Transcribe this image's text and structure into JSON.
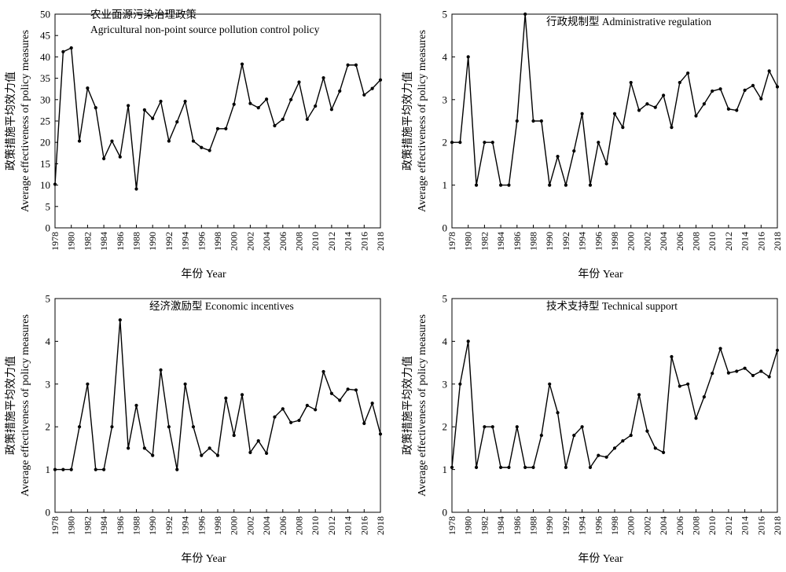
{
  "chart_data": [
    {
      "type": "line",
      "title": "农业面源污染治理政策",
      "subtitle": "Agricultural non-point source pollution control policy",
      "xlabel": "年份 Year",
      "ylabel": "政策措施平均效力值",
      "ylabel_en": "Average effectiveness of policy measures",
      "xlim": [
        1978,
        2018
      ],
      "ylim": [
        0,
        50
      ],
      "yticks": [
        0,
        5,
        10,
        15,
        20,
        25,
        30,
        35,
        40,
        45,
        50
      ],
      "xticks": [
        "1978",
        "1980",
        "1982",
        "1984",
        "1986",
        "1988",
        "1990",
        "1992",
        "1994",
        "1996",
        "1998",
        "2000",
        "2002",
        "2004",
        "2006",
        "2008",
        "2010",
        "2012",
        "2014",
        "2016",
        "2018"
      ],
      "x": [
        1978,
        1979,
        1980,
        1981,
        1982,
        1983,
        1984,
        1985,
        1986,
        1987,
        1988,
        1989,
        1990,
        1991,
        1992,
        1993,
        1994,
        1995,
        1996,
        1997,
        1998,
        1999,
        2000,
        2001,
        2002,
        2003,
        2004,
        2005,
        2006,
        2007,
        2008,
        2009,
        2010,
        2011,
        2012,
        2013,
        2014,
        2015,
        2016,
        2017,
        2018
      ],
      "values": [
        10.2,
        41.2,
        42.1,
        20.3,
        32.7,
        28.1,
        16.2,
        20.3,
        16.6,
        28.6,
        9.1,
        27.6,
        25.6,
        29.6,
        20.3,
        24.8,
        29.6,
        20.3,
        18.8,
        18.1,
        23.2,
        23.2,
        28.9,
        38.3,
        29.1,
        28.1,
        30.1,
        23.9,
        25.4,
        30.0,
        34.1,
        25.4,
        28.5,
        35.1,
        27.7,
        32.0,
        38.1,
        38.1,
        31.1,
        32.6,
        34.6
      ]
    },
    {
      "type": "line",
      "title": "行政规制型",
      "subtitle": "Administrative regulation",
      "xlabel": "年份 Year",
      "ylabel": "政策措施平均效力值",
      "ylabel_en": "Average effectiveness of policy measures",
      "xlim": [
        1978,
        2018
      ],
      "ylim": [
        0,
        5
      ],
      "yticks": [
        0,
        1,
        2,
        3,
        4,
        5
      ],
      "xticks": [
        "1978",
        "1980",
        "1982",
        "1984",
        "1986",
        "1988",
        "1990",
        "1992",
        "1994",
        "1996",
        "1998",
        "2000",
        "2002",
        "2004",
        "2006",
        "2008",
        "2010",
        "2012",
        "2014",
        "2016",
        "2018"
      ],
      "x": [
        1978,
        1979,
        1980,
        1981,
        1982,
        1983,
        1984,
        1985,
        1986,
        1987,
        1988,
        1989,
        1990,
        1991,
        1992,
        1993,
        1994,
        1995,
        1996,
        1997,
        1998,
        1999,
        2000,
        2001,
        2002,
        2003,
        2004,
        2005,
        2006,
        2007,
        2008,
        2009,
        2010,
        2011,
        2012,
        2013,
        2014,
        2015,
        2016,
        2017,
        2018
      ],
      "values": [
        2.0,
        2.0,
        4.0,
        1.0,
        2.0,
        2.0,
        1.0,
        1.0,
        2.5,
        5.0,
        2.5,
        2.5,
        1.0,
        1.67,
        1.0,
        1.8,
        2.67,
        1.0,
        2.0,
        1.5,
        2.67,
        2.35,
        3.4,
        2.75,
        2.9,
        2.82,
        3.1,
        2.35,
        3.4,
        3.62,
        2.62,
        2.9,
        3.2,
        3.25,
        2.78,
        2.75,
        3.22,
        3.33,
        3.02,
        3.67,
        3.3
      ]
    },
    {
      "type": "line",
      "title": "经济激励型",
      "subtitle": "Economic incentives",
      "xlabel": "年份 Year",
      "ylabel": "政策措施平均效力值",
      "ylabel_en": "Average effectiveness of policy measures",
      "xlim": [
        1978,
        2018
      ],
      "ylim": [
        0,
        5
      ],
      "yticks": [
        0,
        1,
        2,
        3,
        4,
        5
      ],
      "xticks": [
        "1978",
        "1980",
        "1982",
        "1984",
        "1986",
        "1988",
        "1990",
        "1992",
        "1994",
        "1996",
        "1998",
        "2000",
        "2002",
        "2004",
        "2006",
        "2008",
        "2010",
        "2012",
        "2014",
        "2016",
        "2018"
      ],
      "x": [
        1978,
        1979,
        1980,
        1981,
        1982,
        1983,
        1984,
        1985,
        1986,
        1987,
        1988,
        1989,
        1990,
        1991,
        1992,
        1993,
        1994,
        1995,
        1996,
        1997,
        1998,
        1999,
        2000,
        2001,
        2002,
        2003,
        2004,
        2005,
        2006,
        2007,
        2008,
        2009,
        2010,
        2011,
        2012,
        2013,
        2014,
        2015,
        2016,
        2017,
        2018
      ],
      "values": [
        1.0,
        1.0,
        1.0,
        2.0,
        3.0,
        1.0,
        1.0,
        2.0,
        4.5,
        1.5,
        2.5,
        1.5,
        1.33,
        3.33,
        2.0,
        1.0,
        3.0,
        2.0,
        1.33,
        1.5,
        1.33,
        2.67,
        1.8,
        2.75,
        1.4,
        1.67,
        1.38,
        2.23,
        2.42,
        2.1,
        2.15,
        2.5,
        2.4,
        3.29,
        2.78,
        2.62,
        2.88,
        2.86,
        2.08,
        2.55,
        1.83
      ]
    },
    {
      "type": "line",
      "title": "技术支持型",
      "subtitle": "Technical support",
      "xlabel": "年份 Year",
      "ylabel": "政策措施平均效力值",
      "ylabel_en": "Average effectiveness of policy measures",
      "xlim": [
        1978,
        2018
      ],
      "ylim": [
        0,
        5
      ],
      "yticks": [
        0,
        1,
        2,
        3,
        4,
        5
      ],
      "xticks": [
        "1978",
        "1980",
        "1982",
        "1984",
        "1986",
        "1988",
        "1990",
        "1992",
        "1994",
        "1996",
        "1998",
        "2000",
        "2002",
        "2004",
        "2006",
        "2008",
        "2010",
        "2012",
        "2014",
        "2016",
        "2018"
      ],
      "x": [
        1978,
        1979,
        1980,
        1981,
        1982,
        1983,
        1984,
        1985,
        1986,
        1987,
        1988,
        1989,
        1990,
        1991,
        1992,
        1993,
        1994,
        1995,
        1996,
        1997,
        1998,
        1999,
        2000,
        2001,
        2002,
        2003,
        2004,
        2005,
        2006,
        2007,
        2008,
        2009,
        2010,
        2011,
        2012,
        2013,
        2014,
        2015,
        2016,
        2017,
        2018
      ],
      "values": [
        1.05,
        3.0,
        4.0,
        1.05,
        2.0,
        2.0,
        1.05,
        1.05,
        2.0,
        1.05,
        1.05,
        1.8,
        3.0,
        2.33,
        1.05,
        1.8,
        2.0,
        1.05,
        1.33,
        1.29,
        1.5,
        1.67,
        1.8,
        2.75,
        1.9,
        1.5,
        1.4,
        3.64,
        2.95,
        3.0,
        2.2,
        2.7,
        3.25,
        3.83,
        3.26,
        3.3,
        3.37,
        3.2,
        3.3,
        3.17,
        3.79
      ]
    }
  ]
}
